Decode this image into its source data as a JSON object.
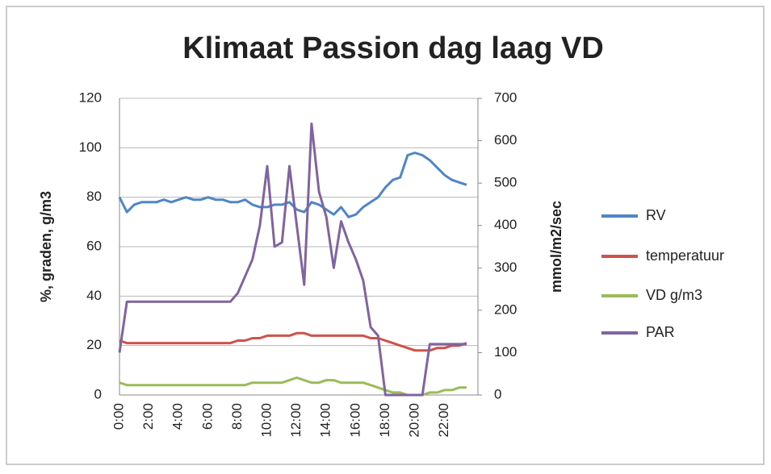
{
  "chart_data": {
    "type": "line",
    "title": "Klimaat Passion dag laag VD",
    "y_label": "%, graden, g/m3",
    "y2_label": "mmol/m2/sec",
    "categories": [
      "0:00",
      null,
      null,
      null,
      "2:00",
      null,
      null,
      null,
      "4:00",
      null,
      null,
      null,
      "6:00",
      null,
      null,
      null,
      "8:00",
      null,
      null,
      null,
      "10:00",
      null,
      null,
      null,
      "12:00",
      null,
      null,
      null,
      "14:00",
      null,
      null,
      null,
      "16:00",
      null,
      null,
      null,
      "18:00",
      null,
      null,
      null,
      "20:00",
      null,
      null,
      null,
      "22:00",
      null,
      null,
      null
    ],
    "ylim": [
      0,
      120
    ],
    "yticks": [
      0,
      20,
      40,
      60,
      80,
      100,
      120
    ],
    "y2lim": [
      0,
      700
    ],
    "y2ticks": [
      0,
      100,
      200,
      300,
      400,
      500,
      600,
      700
    ],
    "grid": true,
    "legend": "right",
    "series": [
      {
        "name": "RV",
        "color": "#4f86c6",
        "values": [
          80,
          74,
          77,
          78,
          78,
          78,
          79,
          78,
          79,
          80,
          79,
          79,
          80,
          79,
          79,
          78,
          78,
          79,
          77,
          76,
          76,
          77,
          77,
          78,
          75,
          74,
          78,
          77,
          75,
          73,
          76,
          72,
          73,
          76,
          78,
          80,
          84,
          87,
          88,
          97,
          98,
          97,
          95,
          92,
          89,
          87,
          86,
          85
        ]
      },
      {
        "name": "temperatuur",
        "color": "#d0504a",
        "values": [
          22,
          21,
          21,
          21,
          21,
          21,
          21,
          21,
          21,
          21,
          21,
          21,
          21,
          21,
          21,
          21,
          22,
          22,
          23,
          23,
          24,
          24,
          24,
          24,
          25,
          25,
          24,
          24,
          24,
          24,
          24,
          24,
          24,
          24,
          23,
          23,
          22,
          21,
          20,
          19,
          18,
          18,
          18,
          19,
          19,
          20,
          20,
          21
        ]
      },
      {
        "name": "VD g/m3",
        "color": "#9bbb59",
        "values": [
          5,
          4,
          4,
          4,
          4,
          4,
          4,
          4,
          4,
          4,
          4,
          4,
          4,
          4,
          4,
          4,
          4,
          4,
          5,
          5,
          5,
          5,
          5,
          6,
          7,
          6,
          5,
          5,
          6,
          6,
          5,
          5,
          5,
          5,
          4,
          3,
          2,
          1,
          1,
          0,
          0,
          0,
          1,
          1,
          2,
          2,
          3,
          3
        ]
      },
      {
        "name": "PAR",
        "color": "#8064a2",
        "axis": "y2",
        "values": [
          100,
          220,
          220,
          220,
          220,
          220,
          220,
          220,
          220,
          220,
          220,
          220,
          220,
          220,
          220,
          220,
          240,
          280,
          320,
          400,
          540,
          350,
          360,
          540,
          400,
          260,
          640,
          480,
          420,
          300,
          410,
          360,
          320,
          270,
          160,
          140,
          0,
          0,
          0,
          0,
          0,
          0,
          120,
          120,
          120,
          120,
          120,
          120
        ]
      }
    ]
  }
}
